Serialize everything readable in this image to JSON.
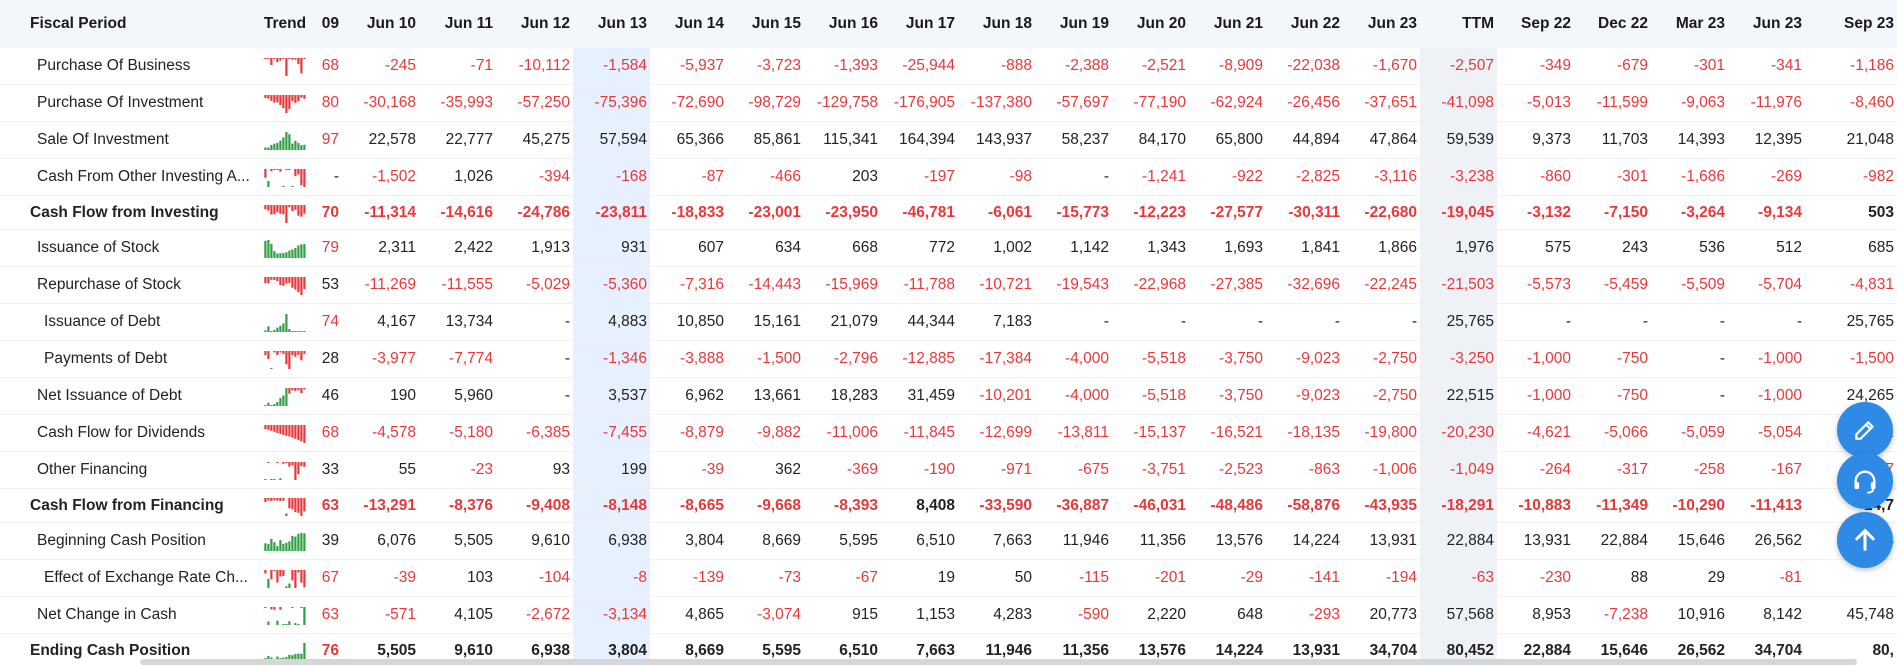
{
  "header": {
    "fiscal_period": "Fiscal Period",
    "trend": "Trend",
    "score": "09",
    "columns": [
      "Jun 10",
      "Jun 11",
      "Jun 12",
      "Jun 13",
      "Jun 14",
      "Jun 15",
      "Jun 16",
      "Jun 17",
      "Jun 18",
      "Jun 19",
      "Jun 20",
      "Jun 21",
      "Jun 22",
      "Jun 23",
      "TTM",
      "Sep 22",
      "Dec 22",
      "Mar 23",
      "Jun 23",
      "Sep 23"
    ]
  },
  "colors": {
    "negative": "#e8383a",
    "positive_bar": "#2ea043",
    "highlight_column": "#e6f0ff",
    "ttm_column": "#eef2f6",
    "fab": "#2f8ae5"
  },
  "rows": [
    {
      "name": "Purchase Of Business",
      "score": "68",
      "values": [
        "-245",
        "-71",
        "-10,112",
        "-1,584",
        "-5,937",
        "-3,723",
        "-1,393",
        "-25,944",
        "-888",
        "-2,388",
        "-2,521",
        "-8,909",
        "-22,038",
        "-1,670",
        "-2,507",
        "-349",
        "-679",
        "-301",
        "-341",
        "-1,186"
      ]
    },
    {
      "name": "Purchase Of Investment",
      "score": "80",
      "values": [
        "-30,168",
        "-35,993",
        "-57,250",
        "-75,396",
        "-72,690",
        "-98,729",
        "-129,758",
        "-176,905",
        "-137,380",
        "-57,697",
        "-77,190",
        "-62,924",
        "-26,456",
        "-37,651",
        "-41,098",
        "-5,013",
        "-11,599",
        "-9,063",
        "-11,976",
        "-8,460"
      ]
    },
    {
      "name": "Sale Of Investment",
      "score": "97",
      "values": [
        "22,578",
        "22,777",
        "45,275",
        "57,594",
        "65,366",
        "85,861",
        "115,341",
        "164,394",
        "143,937",
        "58,237",
        "84,170",
        "65,800",
        "44,894",
        "47,864",
        "59,539",
        "9,373",
        "11,703",
        "14,393",
        "12,395",
        "21,048"
      ]
    },
    {
      "name": "Cash From Other Investing A...",
      "score": "-",
      "values": [
        "-1,502",
        "1,026",
        "-394",
        "-168",
        "-87",
        "-466",
        "203",
        "-197",
        "-98",
        "-",
        "-1,241",
        "-922",
        "-2,825",
        "-3,116",
        "-3,238",
        "-860",
        "-301",
        "-1,686",
        "-269",
        "-982"
      ]
    },
    {
      "name": "Cash Flow from Investing",
      "score": "70",
      "bold": true,
      "values": [
        "-11,314",
        "-14,616",
        "-24,786",
        "-23,811",
        "-18,833",
        "-23,001",
        "-23,950",
        "-46,781",
        "-6,061",
        "-15,773",
        "-12,223",
        "-27,577",
        "-30,311",
        "-22,680",
        "-19,045",
        "-3,132",
        "-7,150",
        "-3,264",
        "-9,134",
        "503"
      ]
    },
    {
      "name": "Issuance of Stock",
      "score": "79",
      "values": [
        "2,311",
        "2,422",
        "1,913",
        "931",
        "607",
        "634",
        "668",
        "772",
        "1,002",
        "1,142",
        "1,343",
        "1,693",
        "1,841",
        "1,866",
        "1,976",
        "575",
        "243",
        "536",
        "512",
        "685"
      ]
    },
    {
      "name": "Repurchase of Stock",
      "score": "53",
      "values": [
        "-11,269",
        "-11,555",
        "-5,029",
        "-5,360",
        "-7,316",
        "-14,443",
        "-15,969",
        "-11,788",
        "-10,721",
        "-19,543",
        "-22,968",
        "-27,385",
        "-32,696",
        "-22,245",
        "-21,503",
        "-5,573",
        "-5,459",
        "-5,509",
        "-5,704",
        "-4,831"
      ]
    },
    {
      "name": "Issuance of Debt",
      "score": "74",
      "sub": true,
      "values": [
        "4,167",
        "13,734",
        "-",
        "4,883",
        "10,850",
        "15,161",
        "21,079",
        "44,344",
        "7,183",
        "-",
        "-",
        "-",
        "-",
        "-",
        "25,765",
        "-",
        "-",
        "-",
        "-",
        "25,765"
      ]
    },
    {
      "name": "Payments of Debt",
      "score": "28",
      "sub": true,
      "values": [
        "-3,977",
        "-7,774",
        "-",
        "-1,346",
        "-3,888",
        "-1,500",
        "-2,796",
        "-12,885",
        "-17,384",
        "-4,000",
        "-5,518",
        "-3,750",
        "-9,023",
        "-2,750",
        "-3,250",
        "-1,000",
        "-750",
        "-",
        "-1,000",
        "-1,500"
      ]
    },
    {
      "name": "Net Issuance of Debt",
      "score": "46",
      "values": [
        "190",
        "5,960",
        "-",
        "3,537",
        "6,962",
        "13,661",
        "18,283",
        "31,459",
        "-10,201",
        "-4,000",
        "-5,518",
        "-3,750",
        "-9,023",
        "-2,750",
        "22,515",
        "-1,000",
        "-750",
        "-",
        "-1,000",
        "24,265"
      ]
    },
    {
      "name": "Cash Flow for Dividends",
      "score": "68",
      "values": [
        "-4,578",
        "-5,180",
        "-6,385",
        "-7,455",
        "-8,879",
        "-9,882",
        "-11,006",
        "-11,845",
        "-12,699",
        "-13,811",
        "-15,137",
        "-16,521",
        "-18,135",
        "-19,800",
        "-20,230",
        "-4,621",
        "-5,066",
        "-5,059",
        "-5,054",
        "-5,051"
      ]
    },
    {
      "name": "Other Financing",
      "score": "33",
      "values": [
        "55",
        "-23",
        "93",
        "199",
        "-39",
        "362",
        "-369",
        "-190",
        "-971",
        "-675",
        "-3,751",
        "-2,523",
        "-863",
        "-1,006",
        "-1,049",
        "-264",
        "-317",
        "-258",
        "-167",
        "-307"
      ]
    },
    {
      "name": "Cash Flow from Financing",
      "score": "63",
      "bold": true,
      "values": [
        "-13,291",
        "-8,376",
        "-9,408",
        "-8,148",
        "-8,665",
        "-9,668",
        "-8,393",
        "8,408",
        "-33,590",
        "-36,887",
        "-46,031",
        "-48,486",
        "-58,876",
        "-43,935",
        "-18,291",
        "-10,883",
        "-11,349",
        "-10,290",
        "-11,413",
        "14,7"
      ]
    },
    {
      "name": "Beginning Cash Position",
      "score": "39",
      "values": [
        "6,076",
        "5,505",
        "9,610",
        "6,938",
        "3,804",
        "8,669",
        "5,595",
        "6,510",
        "7,663",
        "11,946",
        "11,356",
        "13,576",
        "14,224",
        "13,931",
        "22,884",
        "13,931",
        "22,884",
        "15,646",
        "26,562",
        "34,704"
      ]
    },
    {
      "name": "Effect of Exchange Rate Ch...",
      "score": "67",
      "sub": true,
      "values": [
        "-39",
        "103",
        "-104",
        "-8",
        "-139",
        "-73",
        "-67",
        "19",
        "50",
        "-115",
        "-201",
        "-29",
        "-141",
        "-194",
        "-63",
        "-230",
        "88",
        "29",
        "-81",
        ""
      ]
    },
    {
      "name": "Net Change in Cash",
      "score": "63",
      "values": [
        "-571",
        "4,105",
        "-2,672",
        "-3,134",
        "4,865",
        "-3,074",
        "915",
        "1,153",
        "4,283",
        "-590",
        "2,220",
        "648",
        "-293",
        "20,773",
        "57,568",
        "8,953",
        "-7,238",
        "10,916",
        "8,142",
        "45,748"
      ]
    },
    {
      "name": "Ending Cash Position",
      "score": "76",
      "bold": true,
      "values": [
        "5,505",
        "9,610",
        "6,938",
        "3,804",
        "8,669",
        "5,595",
        "6,510",
        "7,663",
        "11,946",
        "11,356",
        "13,576",
        "14,224",
        "13,931",
        "34,704",
        "80,452",
        "22,884",
        "15,646",
        "26,562",
        "34,704",
        "80,"
      ]
    }
  ],
  "fabs": [
    {
      "name": "edit-fab",
      "icon": "pencil-icon"
    },
    {
      "name": "support-fab",
      "icon": "headset-icon"
    },
    {
      "name": "scroll-top-fab",
      "icon": "arrow-up-icon"
    }
  ]
}
